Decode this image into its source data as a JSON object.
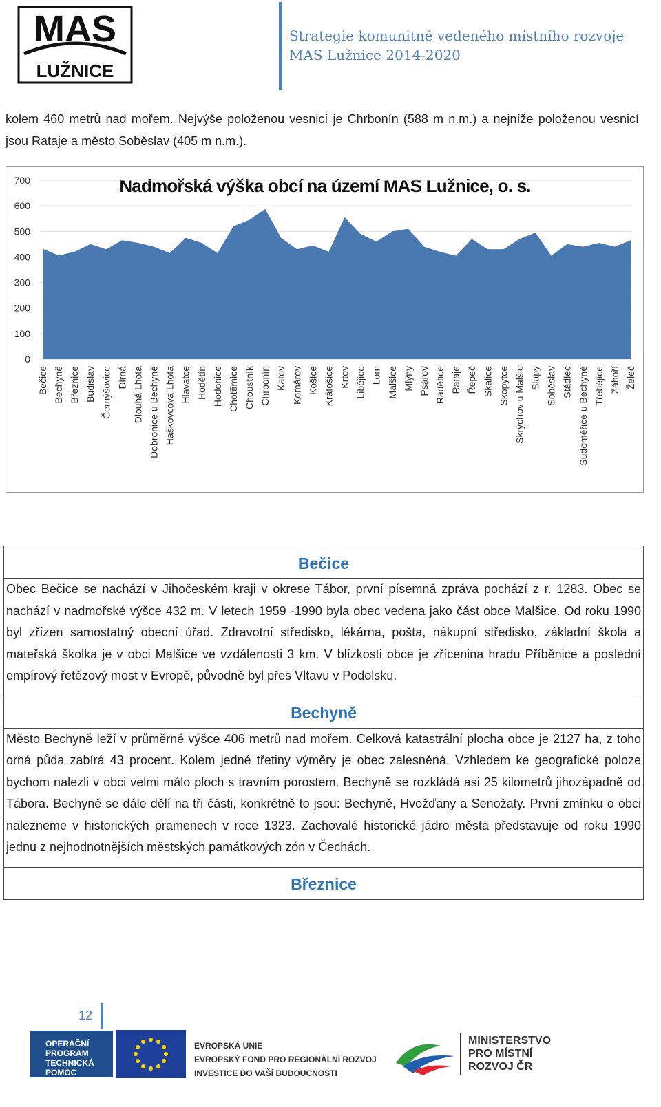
{
  "header": {
    "logo_top": "MAS",
    "logo_bottom": "LUŽNICE",
    "title_lines": [
      "Strategie komunitně vedeného místního rozvoje",
      "MAS Lužnice 2014-2020"
    ]
  },
  "intro": "kolem 460 metrů nad mořem. Nejvýše položenou vesnicí je Chrbonín (588 m n.m.) a nejníže položenou vesnicí jsou Rataje a město Soběslav (405 m n.m.).",
  "chart_data": {
    "type": "area",
    "title": "Nadmořská výška obcí na území MAS Lužnice, o. s.",
    "categories": [
      "Bečice",
      "Bechyně",
      "Březnice",
      "Budislav",
      "Černýšovice",
      "Dirná",
      "Dlouhá Lhota",
      "Dobronice u Bechyně",
      "Haškovcova Lhota",
      "Hlavatce",
      "Hodětín",
      "Hodonice",
      "Chotěmice",
      "Choustník",
      "Chrbonín",
      "Katov",
      "Komárov",
      "Košice",
      "Krátošice",
      "Krtov",
      "Libějice",
      "Lom",
      "Malšice",
      "Mlýny",
      "Psárov",
      "Radětice",
      "Rataje",
      "Řepeč",
      "Skalice",
      "Skopytce",
      "Skrýchov u Malšic",
      "Slapy",
      "Soběslav",
      "Stádlec",
      "Sudoměřice u Bechyně",
      "Třebějice",
      "Záhoří",
      "Želeč"
    ],
    "values": [
      432,
      406,
      420,
      450,
      430,
      465,
      455,
      440,
      415,
      475,
      455,
      415,
      520,
      545,
      588,
      475,
      430,
      445,
      420,
      555,
      490,
      460,
      500,
      510,
      440,
      420,
      405,
      470,
      430,
      430,
      470,
      495,
      405,
      450,
      440,
      455,
      440,
      465
    ],
    "color": "#4a78b0",
    "ylim": [
      0,
      700
    ],
    "yticks": [
      0,
      100,
      200,
      300,
      400,
      500,
      600,
      700
    ],
    "grid": true
  },
  "sections": [
    {
      "title": "Bečice",
      "text": "Obec Bečice se nachází v Jihočeském kraji v okrese Tábor, první písemná zpráva pochází z r. 1283. Obec se nachází v nadmořské výšce 432 m. V letech 1959 -1990 byla obec vedena jako část obce Malšice. Od roku 1990 byl zřízen samostatný obecní úřad. Zdravotní středisko, lékárna, pošta, nákupní středisko, základní škola a mateřská školka je v obci Malšice ve vzdálenosti 3 km. V blízkosti obce je zřícenina hradu Příběnice a poslední empírový řetězový most v Evropě, původně byl přes Vltavu v Podolsku."
    },
    {
      "title": "Bechyně",
      "text": "Město Bechyně leží v průměrné výšce 406 metrů nad mořem. Celková katastrální plocha obce je 2127 ha, z toho orná půda zabírá 43 procent. Kolem jedné třetiny výměry je obec zalesněná. Vzhledem ke geografické poloze bychom nalezli v obci velmi málo ploch s travním porostem. Bechyně se rozkládá asi 25 kilometrů jihozápadně od Tábora. Bechyně se dále dělí na tři části, konkrétně to jsou: Bechyně, Hvožďany a Senožaty. První zmínku o obci nalezneme v historických pramenech v roce 1323. Zachovalé historické jádro města představuje od roku 1990 jednu z nejhodnotnějších městských památkových zón v Čechách."
    },
    {
      "title": "Březnice"
    }
  ],
  "page_number": 12,
  "footer": {
    "optp": [
      "OPERAČNÍ",
      "PROGRAM",
      "TECHNICKÁ",
      "POMOC"
    ],
    "eu": [
      "EVROPSKÁ UNIE",
      "EVROPSKÝ FOND PRO REGIONÁLNÍ ROZVOJ",
      "INVESTICE DO VAŠÍ BUDOUCNOSTI"
    ],
    "mmr": [
      "MINISTERSTVO",
      "PRO MÍSTNÍ",
      "ROZVOJ ČR"
    ]
  }
}
